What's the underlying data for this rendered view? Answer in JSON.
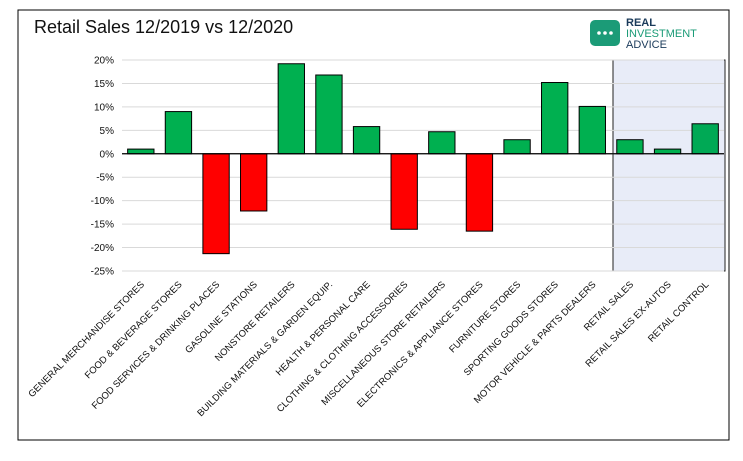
{
  "chart_data": {
    "type": "bar",
    "title": "Retail Sales 12/2019 vs 12/2020",
    "logo": [
      "REAL",
      "INVESTMENT",
      "ADVICE"
    ],
    "categories": [
      "GENERAL MERCHANDISE STORES",
      "FOOD & BEVERAGE STORES",
      "FOOD SERVICES & DRINKING PLACES",
      "GASOLINE STATIONS",
      "NONSTORE RETAILERS",
      "BUILDING MATERIALS & GARDEN EQUIP.",
      "HEALTH & PERSONAL CARE",
      "CLOTHING & CLOTHING ACCESSORIES",
      "MISCELLANEOUS STORE RETAILERS",
      "ELECTRONICS & APPLIANCE STORES",
      "FURNITURE STORES",
      "SPORTING GOODS STORES",
      "MOTOR VEHICLE & PARTS DEALERS",
      "RETAIL SALES",
      "RETAIL SALES EX-AUTOS",
      "RETAIL CONTROL"
    ],
    "values": [
      1,
      9,
      -21.3,
      -12.2,
      19.2,
      16.8,
      5.8,
      -16.1,
      4.7,
      -16.5,
      3,
      15.2,
      10.1,
      3,
      1,
      6.4
    ],
    "colors": [
      "#00b050",
      "#00b050",
      "#ff0000",
      "#ff0000",
      "#00b050",
      "#00b050",
      "#00b050",
      "#ff0000",
      "#00b050",
      "#ff0000",
      "#00b050",
      "#00b050",
      "#00b050",
      "#00b050",
      "#00b050",
      "#00a955"
    ],
    "ylim": [
      -25,
      20
    ],
    "yticks": [
      {
        "value": -25,
        "label": "-25%"
      },
      {
        "value": -20,
        "label": "-20%"
      },
      {
        "value": -15,
        "label": "-15%"
      },
      {
        "value": -10,
        "label": "-10%"
      },
      {
        "value": -5,
        "label": "-5%"
      },
      {
        "value": 0,
        "label": "0%"
      },
      {
        "value": 5,
        "label": "5%"
      },
      {
        "value": 10,
        "label": "10%"
      },
      {
        "value": 15,
        "label": "15%"
      },
      {
        "value": 20,
        "label": "20%"
      }
    ],
    "grid": true
  }
}
